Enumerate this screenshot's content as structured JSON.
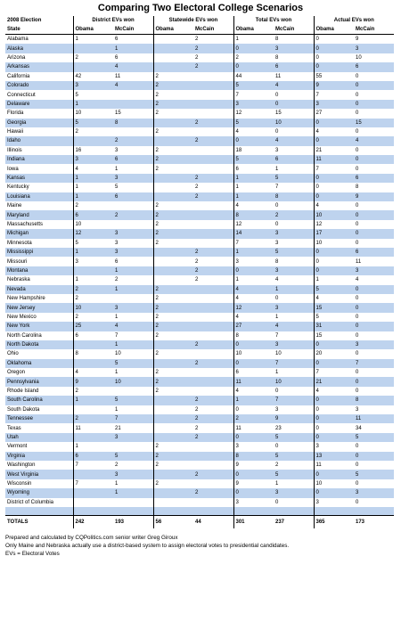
{
  "title": "Comparing Two Electoral College Scenarios",
  "group_headers": {
    "election": "2008 Election",
    "district": "District EVs won",
    "statewide": "Statewide EVs won",
    "total": "Total EVs won",
    "actual": "Actual EVs won"
  },
  "col_headers": {
    "state": "State",
    "obama": "Obama",
    "mccain": "McCain"
  },
  "rows": [
    {
      "state": "Alabama",
      "v": [
        "1",
        "6",
        "",
        "2",
        "1",
        "8",
        "0",
        "9"
      ]
    },
    {
      "state": "Alaska",
      "v": [
        "",
        "1",
        "",
        "2",
        "0",
        "3",
        "0",
        "3"
      ]
    },
    {
      "state": "Arizona",
      "v": [
        "2",
        "6",
        "",
        "2",
        "2",
        "8",
        "0",
        "10"
      ]
    },
    {
      "state": "Arkansas",
      "v": [
        "",
        "4",
        "",
        "2",
        "0",
        "6",
        "0",
        "6"
      ]
    },
    {
      "state": "California",
      "v": [
        "42",
        "11",
        "2",
        "",
        "44",
        "11",
        "55",
        "0"
      ]
    },
    {
      "state": "Colorado",
      "v": [
        "3",
        "4",
        "2",
        "",
        "5",
        "4",
        "9",
        "0"
      ]
    },
    {
      "state": "Connecticut",
      "v": [
        "5",
        "",
        "2",
        "",
        "7",
        "0",
        "7",
        "0"
      ]
    },
    {
      "state": "Delaware",
      "v": [
        "1",
        "",
        "2",
        "",
        "3",
        "0",
        "3",
        "0"
      ]
    },
    {
      "state": "Florida",
      "v": [
        "10",
        "15",
        "2",
        "",
        "12",
        "15",
        "27",
        "0"
      ]
    },
    {
      "state": "Georgia",
      "v": [
        "5",
        "8",
        "",
        "2",
        "5",
        "10",
        "0",
        "15"
      ]
    },
    {
      "state": "Hawaii",
      "v": [
        "2",
        "",
        "2",
        "",
        "4",
        "0",
        "4",
        "0"
      ]
    },
    {
      "state": "Idaho",
      "v": [
        "",
        "2",
        "",
        "2",
        "0",
        "4",
        "0",
        "4"
      ]
    },
    {
      "state": "Illinois",
      "v": [
        "16",
        "3",
        "2",
        "",
        "18",
        "3",
        "21",
        "0"
      ]
    },
    {
      "state": "Indiana",
      "v": [
        "3",
        "6",
        "2",
        "",
        "5",
        "6",
        "11",
        "0"
      ]
    },
    {
      "state": "Iowa",
      "v": [
        "4",
        "1",
        "2",
        "",
        "6",
        "1",
        "7",
        "0"
      ]
    },
    {
      "state": "Kansas",
      "v": [
        "1",
        "3",
        "",
        "2",
        "1",
        "5",
        "0",
        "6"
      ]
    },
    {
      "state": "Kentucky",
      "v": [
        "1",
        "5",
        "",
        "2",
        "1",
        "7",
        "0",
        "8"
      ]
    },
    {
      "state": "Louisiana",
      "v": [
        "1",
        "6",
        "",
        "2",
        "1",
        "8",
        "0",
        "9"
      ]
    },
    {
      "state": "Maine",
      "v": [
        "2",
        "",
        "2",
        "",
        "4",
        "0",
        "4",
        "0"
      ]
    },
    {
      "state": "Maryland",
      "v": [
        "6",
        "2",
        "2",
        "",
        "8",
        "2",
        "10",
        "0"
      ]
    },
    {
      "state": "Massachusetts",
      "v": [
        "10",
        "",
        "2",
        "",
        "12",
        "0",
        "12",
        "0"
      ]
    },
    {
      "state": "Michigan",
      "v": [
        "12",
        "3",
        "2",
        "",
        "14",
        "3",
        "17",
        "0"
      ]
    },
    {
      "state": "Minnesota",
      "v": [
        "5",
        "3",
        "2",
        "",
        "7",
        "3",
        "10",
        "0"
      ]
    },
    {
      "state": "Mississippi",
      "v": [
        "1",
        "3",
        "",
        "2",
        "1",
        "5",
        "0",
        "6"
      ]
    },
    {
      "state": "Missouri",
      "v": [
        "3",
        "6",
        "",
        "2",
        "3",
        "8",
        "0",
        "11"
      ]
    },
    {
      "state": "Montana",
      "v": [
        "",
        "1",
        "",
        "2",
        "0",
        "3",
        "0",
        "3"
      ]
    },
    {
      "state": "Nebraska",
      "v": [
        "1",
        "2",
        "",
        "2",
        "1",
        "4",
        "1",
        "4"
      ]
    },
    {
      "state": "Nevada",
      "v": [
        "2",
        "1",
        "2",
        "",
        "4",
        "1",
        "5",
        "0"
      ]
    },
    {
      "state": "New Hampshire",
      "v": [
        "2",
        "",
        "2",
        "",
        "4",
        "0",
        "4",
        "0"
      ]
    },
    {
      "state": "New Jersey",
      "v": [
        "10",
        "3",
        "2",
        "",
        "12",
        "3",
        "15",
        "0"
      ]
    },
    {
      "state": "New Mexico",
      "v": [
        "2",
        "1",
        "2",
        "",
        "4",
        "1",
        "5",
        "0"
      ]
    },
    {
      "state": "New York",
      "v": [
        "25",
        "4",
        "2",
        "",
        "27",
        "4",
        "31",
        "0"
      ]
    },
    {
      "state": "North Carolina",
      "v": [
        "6",
        "7",
        "2",
        "",
        "8",
        "7",
        "15",
        "0"
      ]
    },
    {
      "state": "North Dakota",
      "v": [
        "",
        "1",
        "",
        "2",
        "0",
        "3",
        "0",
        "3"
      ]
    },
    {
      "state": "Ohio",
      "v": [
        "8",
        "10",
        "2",
        "",
        "10",
        "10",
        "20",
        "0"
      ]
    },
    {
      "state": "Oklahoma",
      "v": [
        "",
        "5",
        "",
        "2",
        "0",
        "7",
        "0",
        "7"
      ]
    },
    {
      "state": "Oregon",
      "v": [
        "4",
        "1",
        "2",
        "",
        "6",
        "1",
        "7",
        "0"
      ]
    },
    {
      "state": "Pennsylvania",
      "v": [
        "9",
        "10",
        "2",
        "",
        "11",
        "10",
        "21",
        "0"
      ]
    },
    {
      "state": "Rhode Island",
      "v": [
        "2",
        "",
        "2",
        "",
        "4",
        "0",
        "4",
        "0"
      ]
    },
    {
      "state": "South Carolina",
      "v": [
        "1",
        "5",
        "",
        "2",
        "1",
        "7",
        "0",
        "8"
      ]
    },
    {
      "state": "South Dakota",
      "v": [
        "",
        "1",
        "",
        "2",
        "0",
        "3",
        "0",
        "3"
      ]
    },
    {
      "state": "Tennessee",
      "v": [
        "2",
        "7",
        "",
        "2",
        "2",
        "9",
        "0",
        "11"
      ]
    },
    {
      "state": "Texas",
      "v": [
        "11",
        "21",
        "",
        "2",
        "11",
        "23",
        "0",
        "34"
      ]
    },
    {
      "state": "Utah",
      "v": [
        "",
        "3",
        "",
        "2",
        "0",
        "5",
        "0",
        "5"
      ]
    },
    {
      "state": "Vermont",
      "v": [
        "1",
        "",
        "2",
        "",
        "3",
        "0",
        "3",
        "0"
      ]
    },
    {
      "state": "Virginia",
      "v": [
        "6",
        "5",
        "2",
        "",
        "8",
        "5",
        "13",
        "0"
      ]
    },
    {
      "state": "Washington",
      "v": [
        "7",
        "2",
        "2",
        "",
        "9",
        "2",
        "11",
        "0"
      ]
    },
    {
      "state": "West Virginia",
      "v": [
        "",
        "3",
        "",
        "2",
        "0",
        "5",
        "0",
        "5"
      ]
    },
    {
      "state": "Wisconsin",
      "v": [
        "7",
        "1",
        "2",
        "",
        "9",
        "1",
        "10",
        "0"
      ]
    },
    {
      "state": "Wyoming",
      "v": [
        "",
        "1",
        "",
        "2",
        "0",
        "3",
        "0",
        "3"
      ]
    },
    {
      "state": "District of Columbia",
      "v": [
        "",
        "",
        "",
        "",
        "3",
        "0",
        "3",
        "0"
      ]
    }
  ],
  "totals": {
    "label": "TOTALS",
    "v": [
      "242",
      "193",
      "56",
      "44",
      "301",
      "237",
      "365",
      "173"
    ]
  },
  "notes": [
    "Prepared and calculated by CQPolitics.com senior writer Greg Giroux",
    "Only Maine and Nebraska actually use a district-based system to assign electoral votes to presidential candidates.",
    "EVs = Electoral Votes"
  ],
  "colors": {
    "row_highlight": "#bed3ee",
    "background": "#ffffff"
  }
}
